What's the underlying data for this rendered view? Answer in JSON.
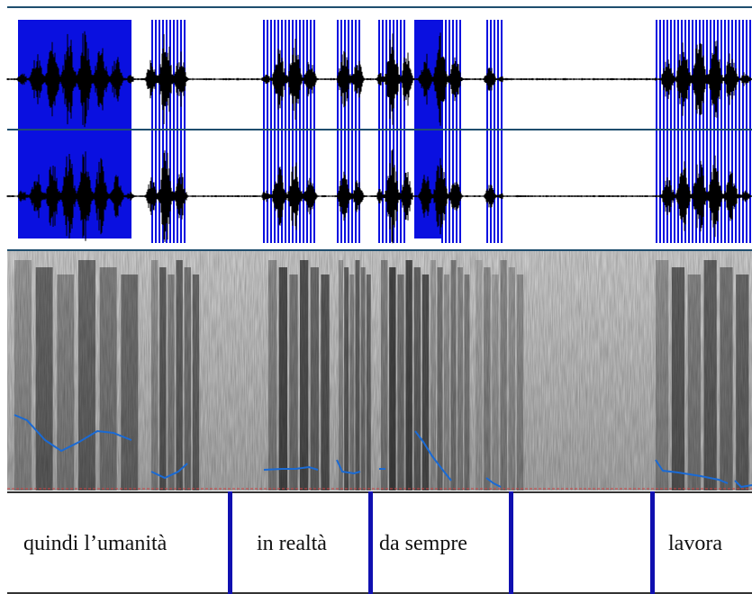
{
  "colors": {
    "selection": "#0a10e0",
    "waveform": "#000000",
    "channel_separator": "#1f4e6e",
    "pitch": "#1a6ad4",
    "boundary": "#1010b0",
    "zero_line": "#d04040"
  },
  "tier": {
    "intervals": [
      {
        "label": "quindi l’umanità"
      },
      {
        "label": "in realtà"
      },
      {
        "label": "da sempre"
      },
      {
        "label": ""
      },
      {
        "label": "lavora"
      }
    ]
  }
}
